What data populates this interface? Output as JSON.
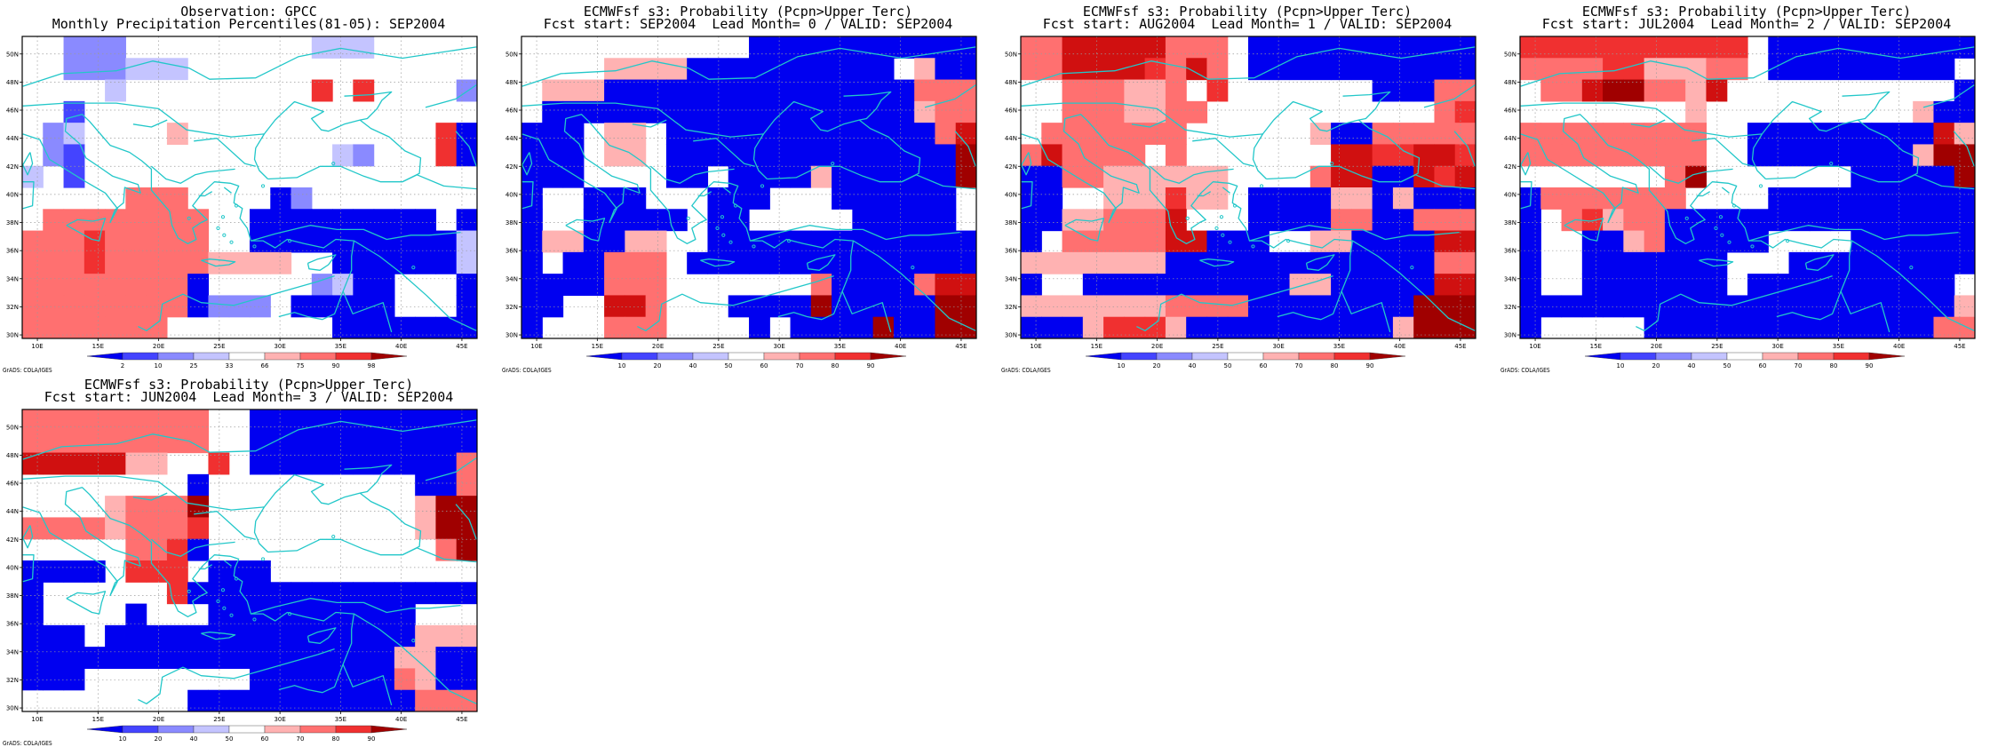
{
  "credit": "GrADS: COLA/IGES",
  "colors": {
    "coast": "#22c7c9",
    "grid": "#9a9a9a",
    "palette": [
      "#0000f0",
      "#4444ff",
      "#8a8aff",
      "#c4c4ff",
      "#ffffff",
      "#ffb2b2",
      "#ff7070",
      "#f03030",
      "#d01010",
      "#a00000"
    ]
  },
  "axes": {
    "lon_ticks": [
      "10E",
      "15E",
      "20E",
      "25E",
      "30E",
      "35E",
      "40E",
      "45E"
    ],
    "lat_ticks": [
      "30N",
      "32N",
      "34N",
      "36N",
      "38N",
      "40N",
      "42N",
      "44N",
      "46N",
      "48N",
      "50N"
    ],
    "lon_range": [
      8.75,
      46.25
    ],
    "lat_range": [
      29.75,
      51.25
    ]
  },
  "panels": [
    {
      "title1": "Observation: GPCC",
      "title2": "Monthly Precipitation Percentiles(81-05): SEP2004",
      "colorbar_labels": [
        "2",
        "10",
        "25",
        "33",
        "66",
        "75",
        "90",
        "98"
      ],
      "grid": [
        "4422244444444433344444",
        "4422233344444444444444",
        "4444344444444474744442",
        "4414444444444444444444",
        "4234444544444444444470",
        "4214444444444443244470",
        "3414444444444444444444",
        "4444466644440244444444",
        "4666666664400000000040",
        "6667666664400000000003",
        "6667666665555440000003",
        "6666666604444423004440",
        "6666666602224000004440",
        "6666666444444440000000"
      ]
    },
    {
      "title1": "ECMWFsf s3: Probability (Pcpn>Upper Terc)",
      "title2": "Fcst start: SEP2004  Lead Month= 0 / VALID: SEP2004",
      "colorbar_labels": [
        "10",
        "20",
        "40",
        "50",
        "60",
        "70",
        "80",
        "90"
      ],
      "grid": [
        "4444444444400000000000",
        "4444555500000000004500",
        "4555000000000000000666",
        "4000000000000000000566",
        "0004554000000000000068",
        "0004554000000000000009",
        "0004444004000050000009",
        "0440004440004440000004",
        "0440000040044444000004",
        "0550055440000000000000",
        "0400666400000000000000",
        "0000666444444460000688",
        "0044886444000090000099",
        "0444666444404000090099"
      ]
    },
    {
      "title1": "ECMWFsf s3: Probability (Pcpn>Upper Terc)",
      "title2": "Fcst start: AUG2004  Lead Month= 1 / VALID: SEP2004",
      "colorbar_labels": [
        "10",
        "20",
        "40",
        "50",
        "60",
        "70",
        "80",
        "90"
      ],
      "grid": [
        "6688888666400000000000",
        "6688887686400000000000",
        "4466655647444444400066",
        "4466655664444444444467",
        "4666666644444450066666",
        "6866664644444448877887",
        "0066555555444468800878",
        "0044555755400005505000",
        "0055666844400006600666",
        "0466666880004455000088",
        "5555555000000000000066",
        "0440000000000550000088",
        "5555555666600000000999",
        "0005777500000000005999"
      ]
    },
    {
      "title1": "ECMWFsf s3: Probability (Pcpn>Upper Terc)",
      "title2": "Fcst start: JUL2004  Lead Month= 2 / VALID: SEP2004",
      "colorbar_labels": [
        "10",
        "20",
        "40",
        "50",
        "60",
        "70",
        "80",
        "90"
      ],
      "grid": [
        "7777777777740000000000",
        "6666775556640000000004",
        "4668996658444444444440",
        "4444444454444444444500",
        "6666666664400000000085",
        "6666666664400000000599",
        "4444444694444444000009",
        "0666666644440000000000",
        "0467566000000000000000",
        "0440056000004444000000",
        "0440000000444000000000",
        "0440000000400000000004",
        "0000000000000000000005",
        "0444440000000000000066"
      ]
    },
    {
      "title1": "ECMWFsf s3: Probability (Pcpn>Upper Terc)",
      "title2": "Fcst start: JUN2004  Lead Month= 3 / VALID: SEP2004",
      "colorbar_labels": [
        "10",
        "20",
        "40",
        "50",
        "60",
        "70",
        "80",
        "90"
      ],
      "grid": [
        "6666666664400000000000",
        "6666666664400000000000",
        "8888855447400000000006",
        "4444444404444444444006",
        "4444566694444444444599",
        "6666566674444444444599",
        "4444466704444444444469",
        "0000477740004444444444",
        "0444444700000000000000",
        "0444404440000000000444",
        "0004000000000000000555",
        "0000000000000000005500",
        "0004444444400000006500",
        "4444444400000000000666"
      ]
    }
  ]
}
